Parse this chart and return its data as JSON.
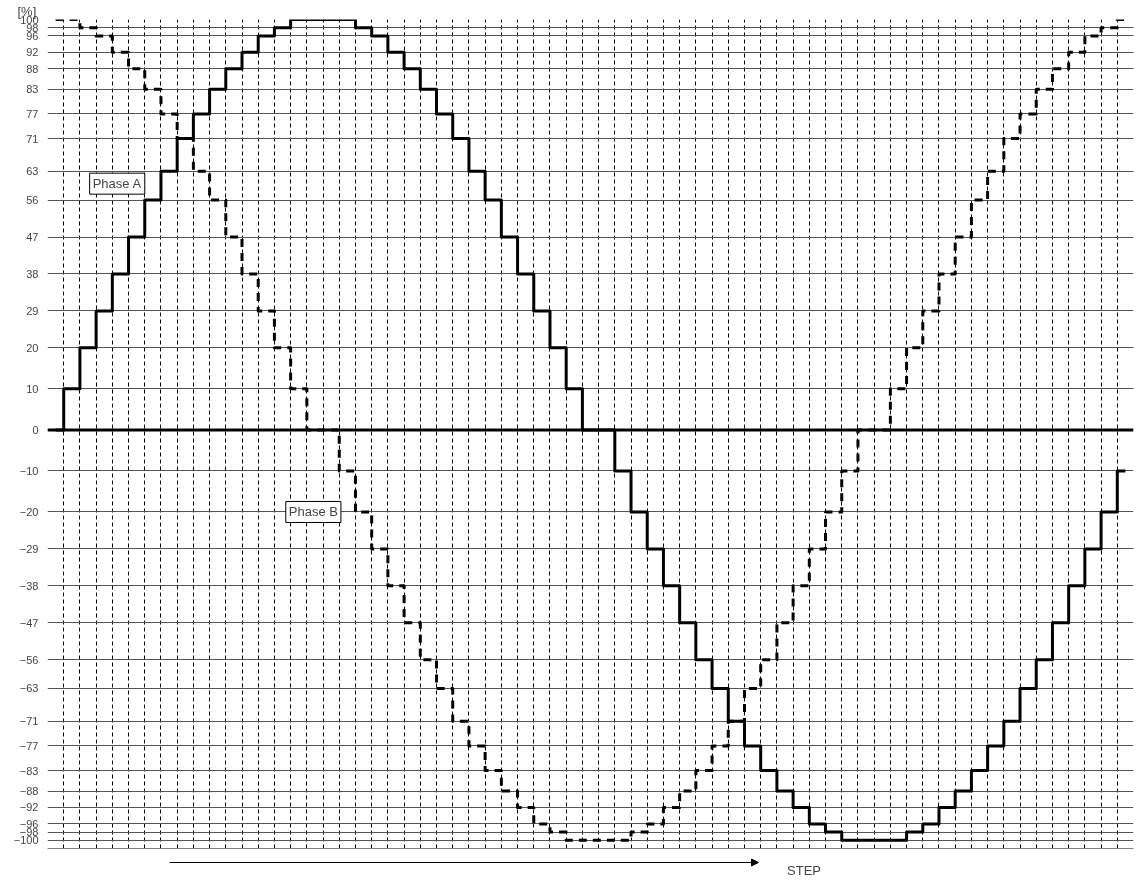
{
  "chart_data": {
    "type": "step",
    "categories": [
      null,
      null,
      null,
      null,
      null,
      null,
      null,
      null,
      null,
      null,
      null,
      null,
      null,
      null,
      null,
      null,
      null,
      null,
      null,
      null,
      null,
      null,
      null,
      null,
      null,
      null,
      null,
      null,
      null,
      null,
      null,
      null,
      null,
      null,
      null,
      null,
      null,
      null,
      null,
      null,
      null,
      null,
      null,
      null,
      null,
      null,
      null,
      null,
      null,
      null,
      null,
      null,
      null,
      null,
      null,
      null,
      null,
      null,
      null,
      null,
      null,
      null,
      null,
      null,
      null,
      null,
      null
    ],
    "series": [
      {
        "name": "Phase A",
        "color": "#000000",
        "line_style": "solid",
        "values": [
          0,
          10,
          20,
          29,
          38,
          47,
          56,
          63,
          71,
          77,
          83,
          88,
          92,
          96,
          98,
          100,
          100,
          100,
          100,
          98,
          96,
          92,
          88,
          83,
          77,
          71,
          63,
          56,
          47,
          38,
          29,
          20,
          10,
          0,
          0,
          -10,
          -20,
          -29,
          -38,
          -47,
          -56,
          -63,
          -71,
          -77,
          -83,
          -88,
          -92,
          -96,
          -98,
          -100,
          -100,
          -100,
          -100,
          -98,
          -96,
          -92,
          -88,
          -83,
          -77,
          -71,
          -63,
          -56,
          -47,
          -38,
          -29,
          -20,
          -10
        ]
      },
      {
        "name": "Phase B",
        "color": "#000000",
        "line_style": "dashed",
        "values": [
          100,
          100,
          98,
          96,
          92,
          88,
          83,
          77,
          71,
          63,
          56,
          47,
          38,
          29,
          20,
          10,
          0,
          0,
          -10,
          -20,
          -29,
          -38,
          -47,
          -56,
          -63,
          -71,
          -77,
          -83,
          -88,
          -92,
          -96,
          -98,
          -100,
          -100,
          -100,
          -100,
          -98,
          -96,
          -92,
          -88,
          -83,
          -77,
          -71,
          -63,
          -56,
          -47,
          -38,
          -29,
          -20,
          -10,
          0,
          0,
          10,
          20,
          29,
          38,
          47,
          56,
          63,
          71,
          77,
          83,
          88,
          92,
          96,
          98,
          100
        ]
      }
    ],
    "xlabel": "STEP",
    "ylabel": "[%]",
    "ylim": [
      -102,
      100
    ],
    "yticks": [
      100,
      98,
      96,
      92,
      88,
      83,
      77,
      71,
      63,
      56,
      47,
      38,
      29,
      20,
      10,
      0,
      {
        "value": -10,
        "label": "−10"
      },
      {
        "value": -20,
        "label": "−20"
      },
      {
        "value": -29,
        "label": "−29"
      },
      {
        "value": -38,
        "label": "−38"
      },
      {
        "value": -47,
        "label": "−47"
      },
      {
        "value": -56,
        "label": "−56"
      },
      {
        "value": -63,
        "label": "−63"
      },
      {
        "value": -71,
        "label": "−71"
      },
      {
        "value": -77,
        "label": "−77"
      },
      {
        "value": -83,
        "label": "−83"
      },
      {
        "value": -88,
        "label": "−88"
      },
      {
        "value": -92,
        "label": "−92"
      },
      {
        "value": -96,
        "label": "−96"
      },
      {
        "value": -98,
        "label": "−98"
      },
      {
        "value": -100,
        "label": "−100"
      }
    ],
    "ref_lines": [
      {
        "axis": "y",
        "value": 0
      }
    ],
    "grid": true,
    "tick_labels": "y",
    "marker": "none"
  }
}
